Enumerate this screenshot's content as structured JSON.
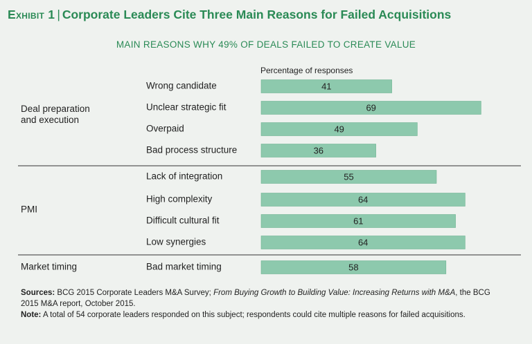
{
  "header": {
    "exhibit_label": "Exhibit 1",
    "title": "Corporate Leaders Cite Three Main Reasons for Failed Acquisitions",
    "subtitle": "MAIN REASONS WHY 49% OF DEALS FAILED TO CREATE VALUE",
    "axis_label": "Percentage of responses"
  },
  "colors": {
    "background": "#eff2ef",
    "bar": "#8dc9ad",
    "bar_stroke": "#6fb592",
    "accent": "#2a8a55",
    "divider": "#333333"
  },
  "chart_data": {
    "type": "bar",
    "orientation": "horizontal",
    "title": "Corporate Leaders Cite Three Main Reasons for Failed Acquisitions",
    "subtitle": "MAIN REASONS WHY 49% OF DEALS FAILED TO CREATE VALUE",
    "xlabel": "Percentage of responses",
    "xlim": [
      0,
      100
    ],
    "grid": false,
    "groups": [
      {
        "name": "Deal preparation and execution",
        "items": [
          {
            "label": "Wrong candidate",
            "value": 41
          },
          {
            "label": "Unclear strategic fit",
            "value": 69
          },
          {
            "label": "Overpaid",
            "value": 49
          },
          {
            "label": "Bad process structure",
            "value": 36
          }
        ]
      },
      {
        "name": "PMI",
        "items": [
          {
            "label": "Lack of integration",
            "value": 55
          },
          {
            "label": "High complexity",
            "value": 64
          },
          {
            "label": "Difficult cultural fit",
            "value": 61
          },
          {
            "label": "Low synergies",
            "value": 64
          }
        ]
      },
      {
        "name": "Market timing",
        "items": [
          {
            "label": "Bad market timing",
            "value": 58
          }
        ]
      }
    ]
  },
  "footnotes": {
    "sources_label": "Sources:",
    "sources_text_1": "BCG 2015 Corporate Leaders M&A Survey; ",
    "sources_italic": "From Buying Growth to Building Value: Increasing Returns with M&A",
    "sources_text_2": ", the BCG 2015 M&A report, October 2015.",
    "note_label": "Note:",
    "note_text": "A total of 54 corporate leaders responded on this subject; respondents could cite multiple reasons for failed acquisitions."
  }
}
